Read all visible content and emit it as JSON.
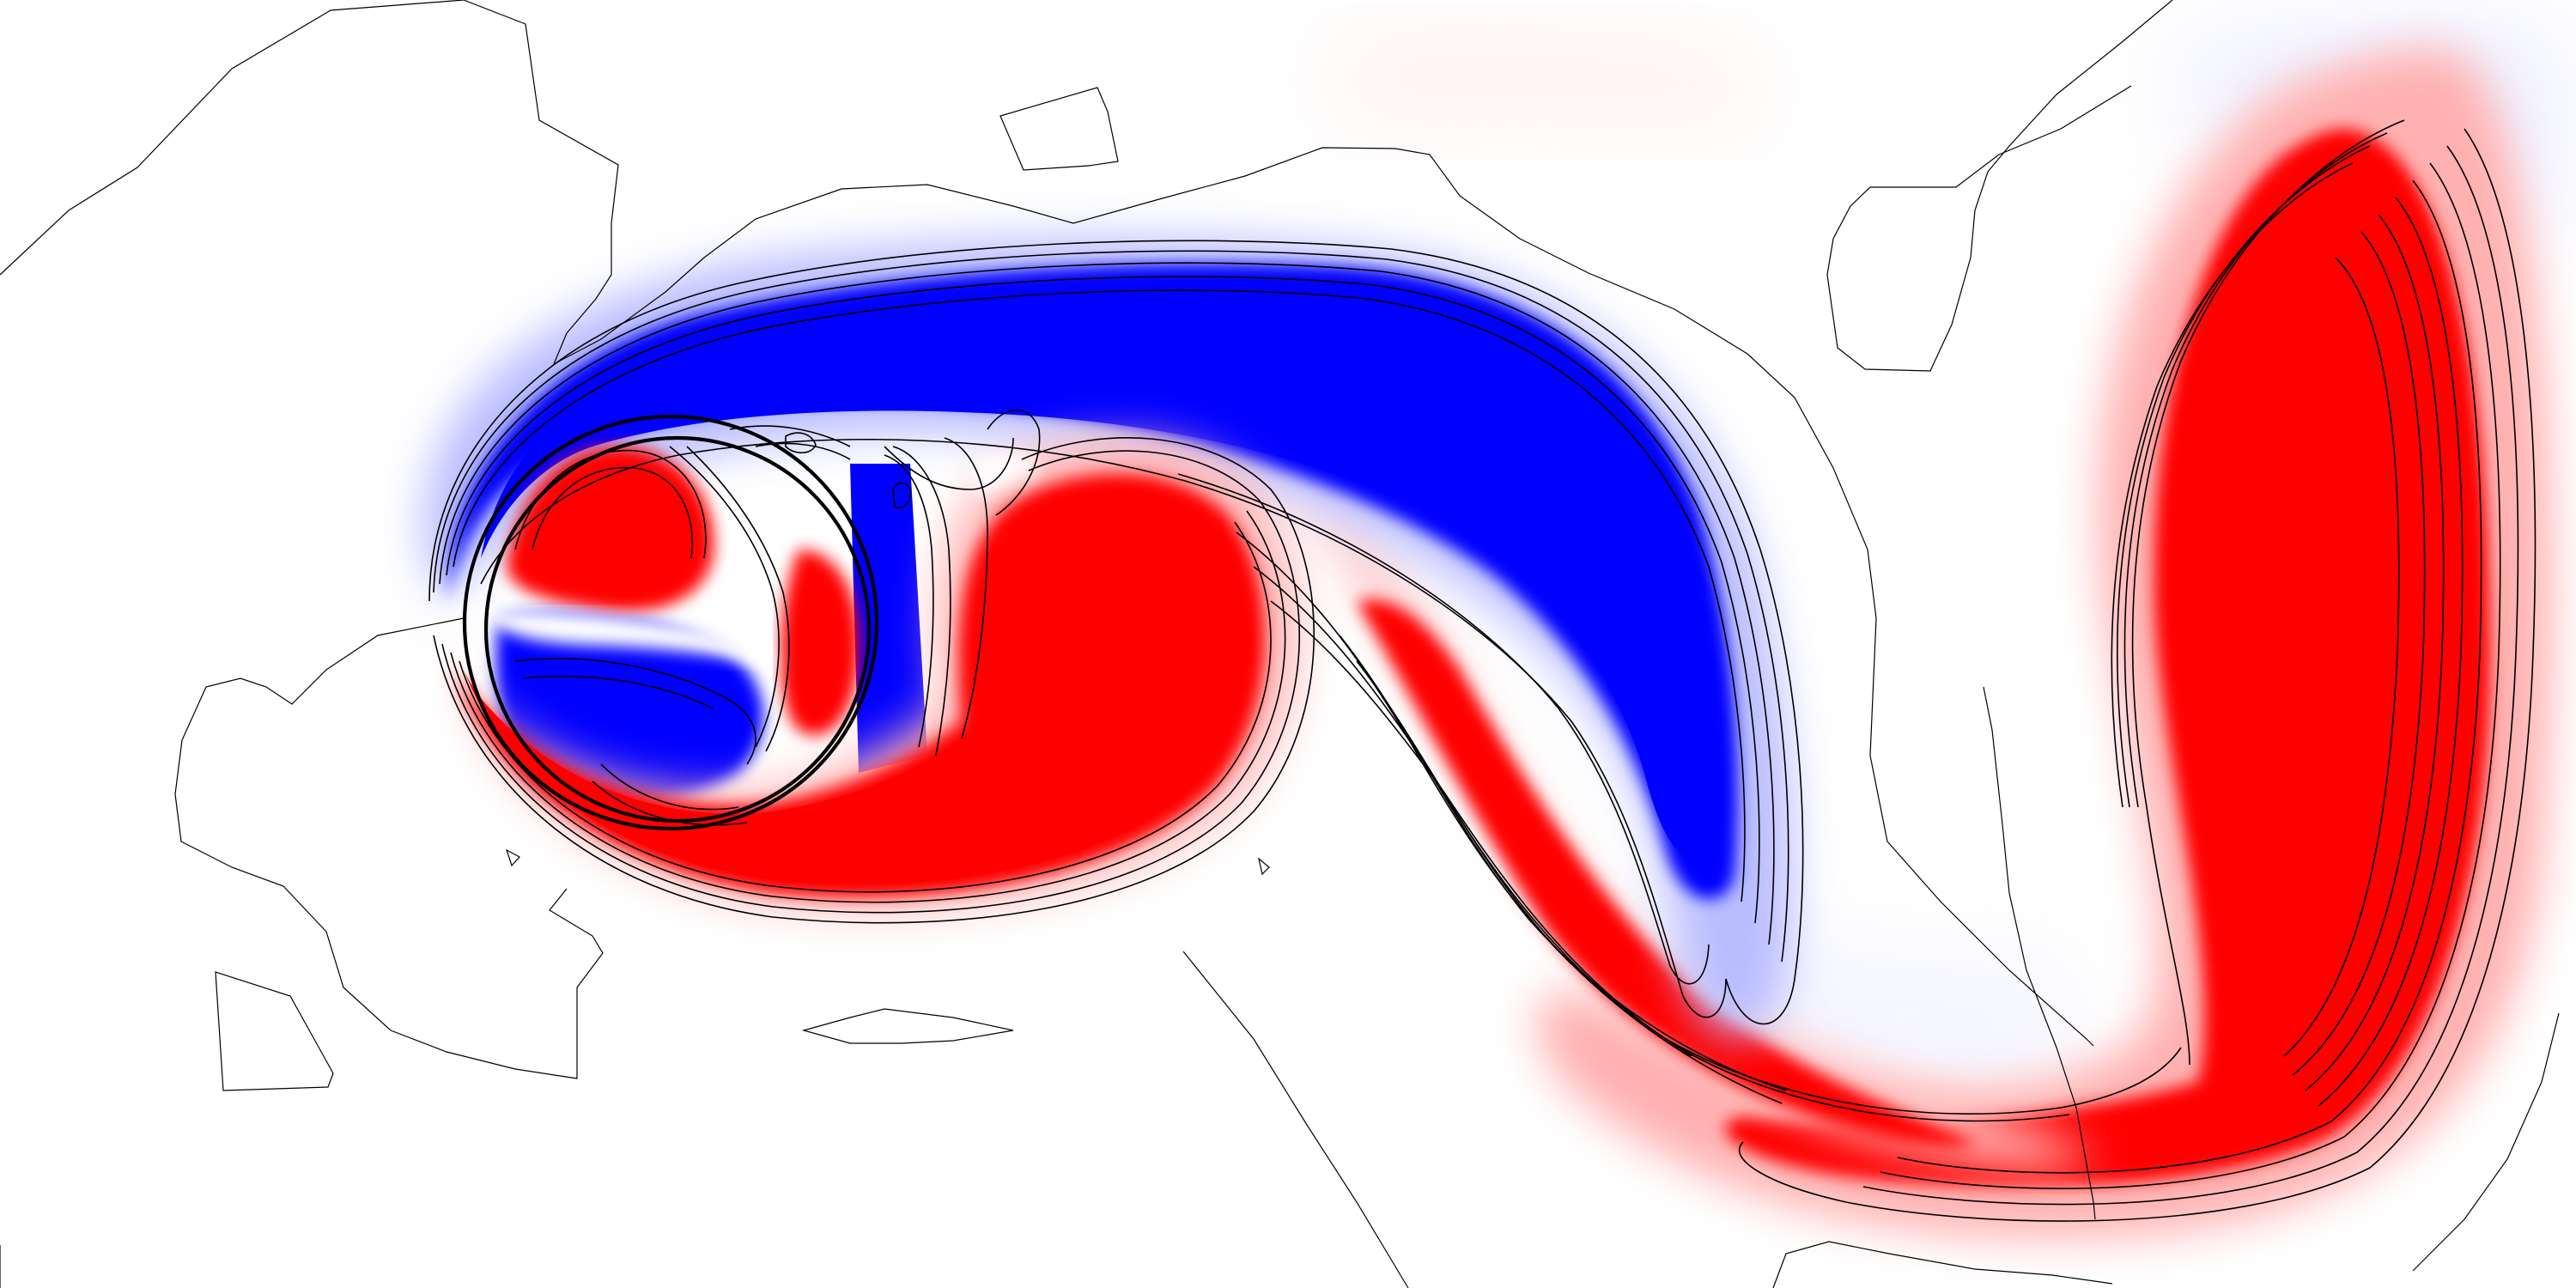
{
  "figure": {
    "kind": "vorticity-contour-field",
    "colors": {
      "background": "#ffffff",
      "positive": "#ff0000",
      "negative": "#0000ff",
      "contour": "#000000",
      "body": "#000000"
    }
  }
}
